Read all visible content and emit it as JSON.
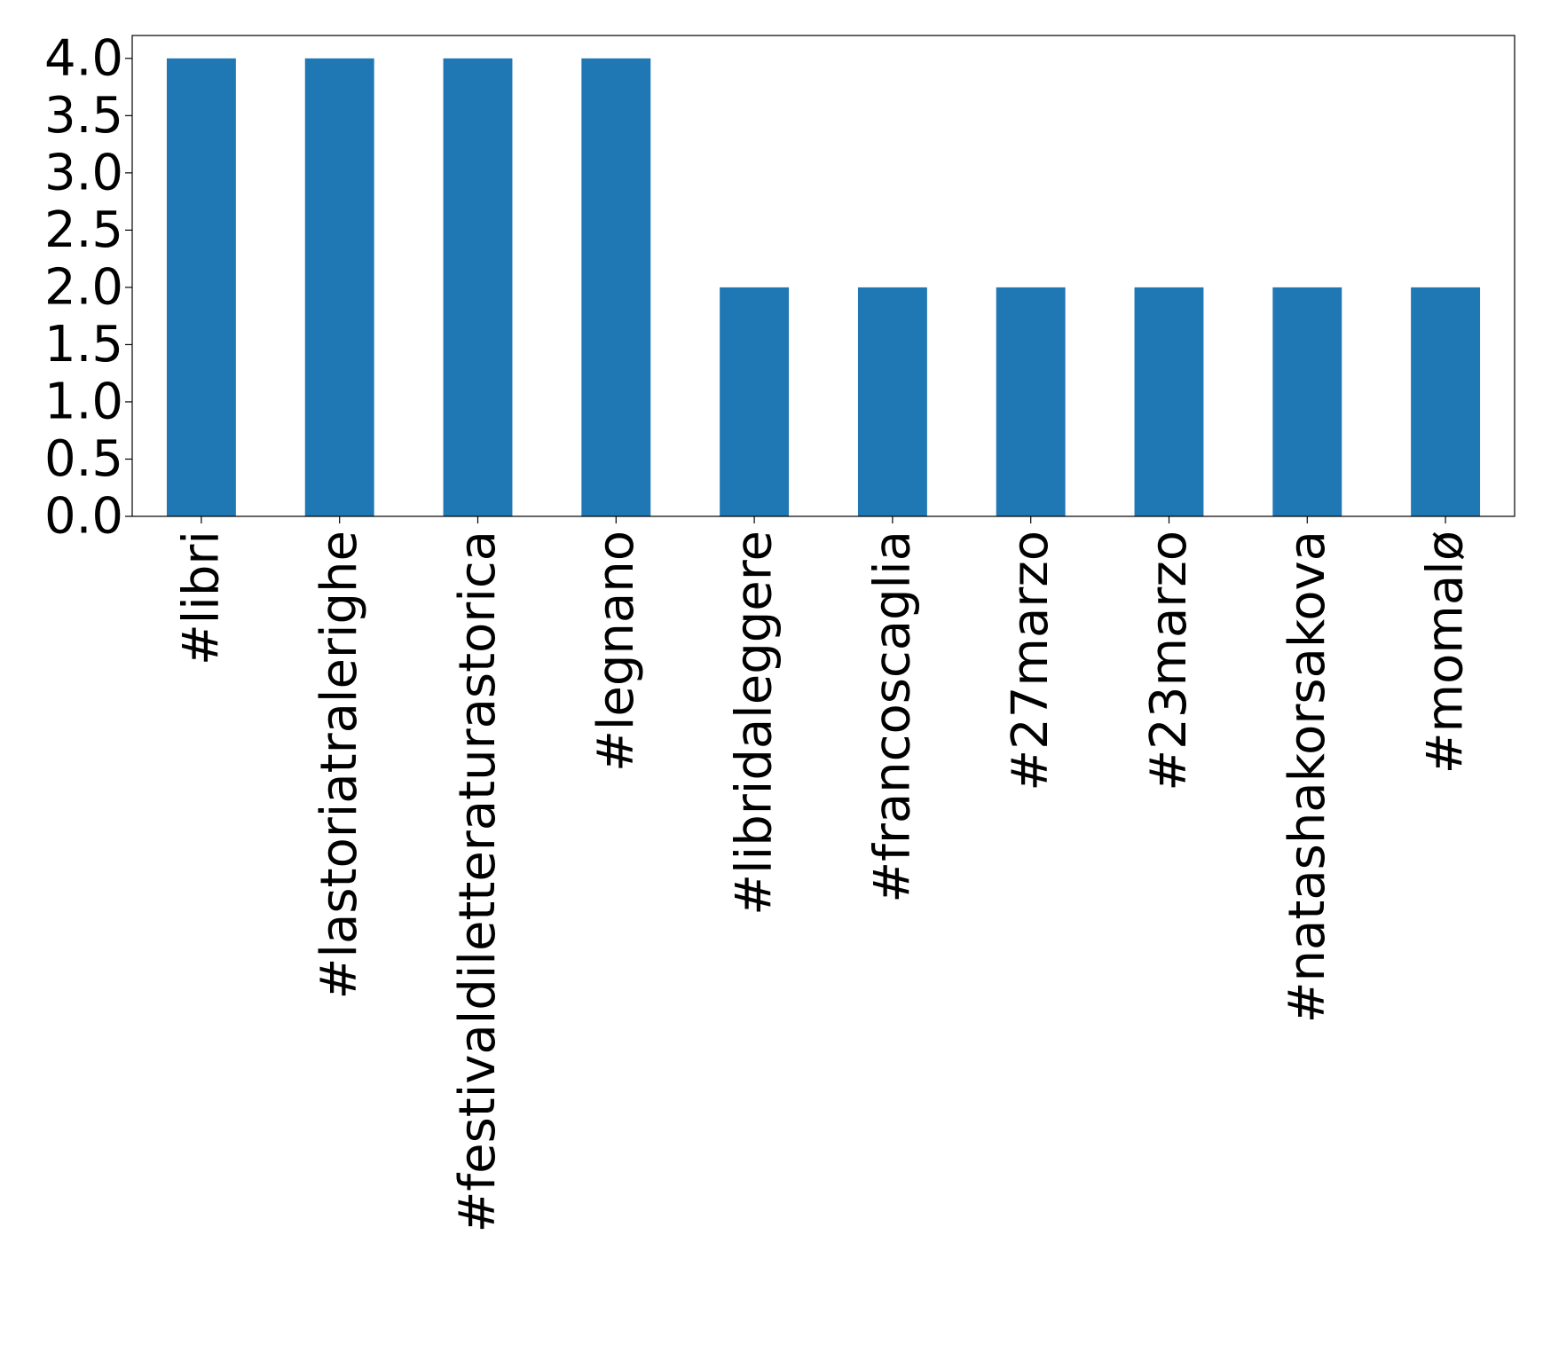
{
  "chart_data": {
    "type": "bar",
    "title": "",
    "xlabel": "",
    "ylabel": "",
    "categories": [
      "#libri",
      "#lastoriatralerighe",
      "#festivaldiletteraturastorica",
      "#legnano",
      "#libridaleggere",
      "#francoscaglia",
      "#27marzo",
      "#23marzo",
      "#natashakorsakova",
      "#momalø"
    ],
    "values": [
      4,
      4,
      4,
      4,
      2,
      2,
      2,
      2,
      2,
      2
    ],
    "ylim": [
      0,
      4.2
    ],
    "yticks": [
      "0.0",
      "0.5",
      "1.0",
      "1.5",
      "2.0",
      "2.5",
      "3.0",
      "3.5",
      "4.0"
    ],
    "bar_color": "#1f77b4",
    "grid": false,
    "legend": false
  }
}
